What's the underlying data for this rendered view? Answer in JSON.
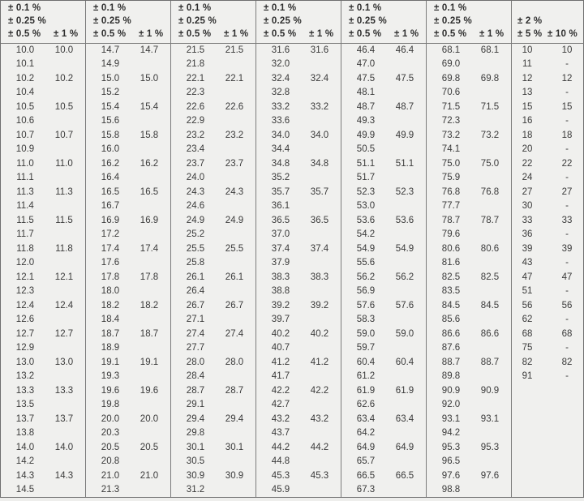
{
  "colors": {
    "background": "#f0f0ee",
    "grid_line": "#7b7b7b",
    "header_text": "#2e2e2e",
    "value_text": "#3a3a3a"
  },
  "table": {
    "groups": [
      {
        "tolerances_stacked": [
          "± 0.1 %",
          "± 0.25 %",
          "± 0.5 %"
        ],
        "tolerance_right": "± 1 %",
        "rows": [
          [
            "10.0",
            "10.0"
          ],
          [
            "10.1",
            ""
          ],
          [
            "10.2",
            "10.2"
          ],
          [
            "10.4",
            ""
          ],
          [
            "10.5",
            "10.5"
          ],
          [
            "10.6",
            ""
          ],
          [
            "10.7",
            "10.7"
          ],
          [
            "10.9",
            ""
          ],
          [
            "11.0",
            "11.0"
          ],
          [
            "11.1",
            ""
          ],
          [
            "11.3",
            "11.3"
          ],
          [
            "11.4",
            ""
          ],
          [
            "11.5",
            "11.5"
          ],
          [
            "11.7",
            ""
          ],
          [
            "11.8",
            "11.8"
          ],
          [
            "12.0",
            ""
          ],
          [
            "12.1",
            "12.1"
          ],
          [
            "12.3",
            ""
          ],
          [
            "12.4",
            "12.4"
          ],
          [
            "12.6",
            ""
          ],
          [
            "12.7",
            "12.7"
          ],
          [
            "12.9",
            ""
          ],
          [
            "13.0",
            "13.0"
          ],
          [
            "13.2",
            ""
          ],
          [
            "13.3",
            "13.3"
          ],
          [
            "13.5",
            ""
          ],
          [
            "13.7",
            "13.7"
          ],
          [
            "13.8",
            ""
          ],
          [
            "14.0",
            "14.0"
          ],
          [
            "14.2",
            ""
          ],
          [
            "14.3",
            "14.3"
          ],
          [
            "14.5",
            ""
          ]
        ]
      },
      {
        "tolerances_stacked": [
          "± 0.1 %",
          "± 0.25 %",
          "± 0.5 %"
        ],
        "tolerance_right": "± 1 %",
        "rows": [
          [
            "14.7",
            "14.7"
          ],
          [
            "14.9",
            ""
          ],
          [
            "15.0",
            "15.0"
          ],
          [
            "15.2",
            ""
          ],
          [
            "15.4",
            "15.4"
          ],
          [
            "15.6",
            ""
          ],
          [
            "15.8",
            "15.8"
          ],
          [
            "16.0",
            ""
          ],
          [
            "16.2",
            "16.2"
          ],
          [
            "16.4",
            ""
          ],
          [
            "16.5",
            "16.5"
          ],
          [
            "16.7",
            ""
          ],
          [
            "16.9",
            "16.9"
          ],
          [
            "17.2",
            ""
          ],
          [
            "17.4",
            "17.4"
          ],
          [
            "17.6",
            ""
          ],
          [
            "17.8",
            "17.8"
          ],
          [
            "18.0",
            ""
          ],
          [
            "18.2",
            "18.2"
          ],
          [
            "18.4",
            ""
          ],
          [
            "18.7",
            "18.7"
          ],
          [
            "18.9",
            ""
          ],
          [
            "19.1",
            "19.1"
          ],
          [
            "19.3",
            ""
          ],
          [
            "19.6",
            "19.6"
          ],
          [
            "19.8",
            ""
          ],
          [
            "20.0",
            "20.0"
          ],
          [
            "20.3",
            ""
          ],
          [
            "20.5",
            "20.5"
          ],
          [
            "20.8",
            ""
          ],
          [
            "21.0",
            "21.0"
          ],
          [
            "21.3",
            ""
          ]
        ]
      },
      {
        "tolerances_stacked": [
          "± 0.1 %",
          "± 0.25 %",
          "± 0.5 %"
        ],
        "tolerance_right": "± 1 %",
        "rows": [
          [
            "21.5",
            "21.5"
          ],
          [
            "21.8",
            ""
          ],
          [
            "22.1",
            "22.1"
          ],
          [
            "22.3",
            ""
          ],
          [
            "22.6",
            "22.6"
          ],
          [
            "22.9",
            ""
          ],
          [
            "23.2",
            "23.2"
          ],
          [
            "23.4",
            ""
          ],
          [
            "23.7",
            "23.7"
          ],
          [
            "24.0",
            ""
          ],
          [
            "24.3",
            "24.3"
          ],
          [
            "24.6",
            ""
          ],
          [
            "24.9",
            "24.9"
          ],
          [
            "25.2",
            ""
          ],
          [
            "25.5",
            "25.5"
          ],
          [
            "25.8",
            ""
          ],
          [
            "26.1",
            "26.1"
          ],
          [
            "26.4",
            ""
          ],
          [
            "26.7",
            "26.7"
          ],
          [
            "27.1",
            ""
          ],
          [
            "27.4",
            "27.4"
          ],
          [
            "27.7",
            ""
          ],
          [
            "28.0",
            "28.0"
          ],
          [
            "28.4",
            ""
          ],
          [
            "28.7",
            "28.7"
          ],
          [
            "29.1",
            ""
          ],
          [
            "29.4",
            "29.4"
          ],
          [
            "29.8",
            ""
          ],
          [
            "30.1",
            "30.1"
          ],
          [
            "30.5",
            ""
          ],
          [
            "30.9",
            "30.9"
          ],
          [
            "31.2",
            ""
          ]
        ]
      },
      {
        "tolerances_stacked": [
          "± 0.1 %",
          "± 0.25 %",
          "± 0.5 %"
        ],
        "tolerance_right": "± 1 %",
        "rows": [
          [
            "31.6",
            "31.6"
          ],
          [
            "32.0",
            ""
          ],
          [
            "32.4",
            "32.4"
          ],
          [
            "32.8",
            ""
          ],
          [
            "33.2",
            "33.2"
          ],
          [
            "33.6",
            ""
          ],
          [
            "34.0",
            "34.0"
          ],
          [
            "34.4",
            ""
          ],
          [
            "34.8",
            "34.8"
          ],
          [
            "35.2",
            ""
          ],
          [
            "35.7",
            "35.7"
          ],
          [
            "36.1",
            ""
          ],
          [
            "36.5",
            "36.5"
          ],
          [
            "37.0",
            ""
          ],
          [
            "37.4",
            "37.4"
          ],
          [
            "37.9",
            ""
          ],
          [
            "38.3",
            "38.3"
          ],
          [
            "38.8",
            ""
          ],
          [
            "39.2",
            "39.2"
          ],
          [
            "39.7",
            ""
          ],
          [
            "40.2",
            "40.2"
          ],
          [
            "40.7",
            ""
          ],
          [
            "41.2",
            "41.2"
          ],
          [
            "41.7",
            ""
          ],
          [
            "42.2",
            "42.2"
          ],
          [
            "42.7",
            ""
          ],
          [
            "43.2",
            "43.2"
          ],
          [
            "43.7",
            ""
          ],
          [
            "44.2",
            "44.2"
          ],
          [
            "44.8",
            ""
          ],
          [
            "45.3",
            "45.3"
          ],
          [
            "45.9",
            ""
          ]
        ]
      },
      {
        "tolerances_stacked": [
          "± 0.1 %",
          "± 0.25 %",
          "± 0.5 %"
        ],
        "tolerance_right": "± 1 %",
        "rows": [
          [
            "46.4",
            "46.4"
          ],
          [
            "47.0",
            ""
          ],
          [
            "47.5",
            "47.5"
          ],
          [
            "48.1",
            ""
          ],
          [
            "48.7",
            "48.7"
          ],
          [
            "49.3",
            ""
          ],
          [
            "49.9",
            "49.9"
          ],
          [
            "50.5",
            ""
          ],
          [
            "51.1",
            "51.1"
          ],
          [
            "51.7",
            ""
          ],
          [
            "52.3",
            "52.3"
          ],
          [
            "53.0",
            ""
          ],
          [
            "53.6",
            "53.6"
          ],
          [
            "54.2",
            ""
          ],
          [
            "54.9",
            "54.9"
          ],
          [
            "55.6",
            ""
          ],
          [
            "56.2",
            "56.2"
          ],
          [
            "56.9",
            ""
          ],
          [
            "57.6",
            "57.6"
          ],
          [
            "58.3",
            ""
          ],
          [
            "59.0",
            "59.0"
          ],
          [
            "59.7",
            ""
          ],
          [
            "60.4",
            "60.4"
          ],
          [
            "61.2",
            ""
          ],
          [
            "61.9",
            "61.9"
          ],
          [
            "62.6",
            ""
          ],
          [
            "63.4",
            "63.4"
          ],
          [
            "64.2",
            ""
          ],
          [
            "64.9",
            "64.9"
          ],
          [
            "65.7",
            ""
          ],
          [
            "66.5",
            "66.5"
          ],
          [
            "67.3",
            ""
          ]
        ]
      },
      {
        "tolerances_stacked": [
          "± 0.1 %",
          "± 0.25 %",
          "± 0.5 %"
        ],
        "tolerance_right": "± 1 %",
        "rows": [
          [
            "68.1",
            "68.1"
          ],
          [
            "69.0",
            ""
          ],
          [
            "69.8",
            "69.8"
          ],
          [
            "70.6",
            ""
          ],
          [
            "71.5",
            "71.5"
          ],
          [
            "72.3",
            ""
          ],
          [
            "73.2",
            "73.2"
          ],
          [
            "74.1",
            ""
          ],
          [
            "75.0",
            "75.0"
          ],
          [
            "75.9",
            ""
          ],
          [
            "76.8",
            "76.8"
          ],
          [
            "77.7",
            ""
          ],
          [
            "78.7",
            "78.7"
          ],
          [
            "79.6",
            ""
          ],
          [
            "80.6",
            "80.6"
          ],
          [
            "81.6",
            ""
          ],
          [
            "82.5",
            "82.5"
          ],
          [
            "83.5",
            ""
          ],
          [
            "84.5",
            "84.5"
          ],
          [
            "85.6",
            ""
          ],
          [
            "86.6",
            "86.6"
          ],
          [
            "87.6",
            ""
          ],
          [
            "88.7",
            "88.7"
          ],
          [
            "89.8",
            ""
          ],
          [
            "90.9",
            "90.9"
          ],
          [
            "92.0",
            ""
          ],
          [
            "93.1",
            "93.1"
          ],
          [
            "94.2",
            ""
          ],
          [
            "95.3",
            "95.3"
          ],
          [
            "96.5",
            ""
          ],
          [
            "97.6",
            "97.6"
          ],
          [
            "98.8",
            ""
          ]
        ]
      },
      {
        "tolerances_stacked": [
          "",
          "± 2 %",
          "± 5 %"
        ],
        "tolerance_right": "± 10 %",
        "rows": [
          [
            "10",
            "10"
          ],
          [
            "11",
            "-"
          ],
          [
            "12",
            "12"
          ],
          [
            "13",
            "-"
          ],
          [
            "15",
            "15"
          ],
          [
            "16",
            "-"
          ],
          [
            "18",
            "18"
          ],
          [
            "20",
            "-"
          ],
          [
            "22",
            "22"
          ],
          [
            "24",
            "-"
          ],
          [
            "27",
            "27"
          ],
          [
            "30",
            "-"
          ],
          [
            "33",
            "33"
          ],
          [
            "36",
            "-"
          ],
          [
            "39",
            "39"
          ],
          [
            "43",
            "-"
          ],
          [
            "47",
            "47"
          ],
          [
            "51",
            "-"
          ],
          [
            "56",
            "56"
          ],
          [
            "62",
            "-"
          ],
          [
            "68",
            "68"
          ],
          [
            "75",
            "-"
          ],
          [
            "82",
            "82"
          ],
          [
            "91",
            "-"
          ],
          [
            "",
            ""
          ],
          [
            "",
            ""
          ],
          [
            "",
            ""
          ],
          [
            "",
            ""
          ],
          [
            "",
            ""
          ],
          [
            "",
            ""
          ],
          [
            "",
            ""
          ],
          [
            "",
            ""
          ]
        ]
      }
    ]
  }
}
